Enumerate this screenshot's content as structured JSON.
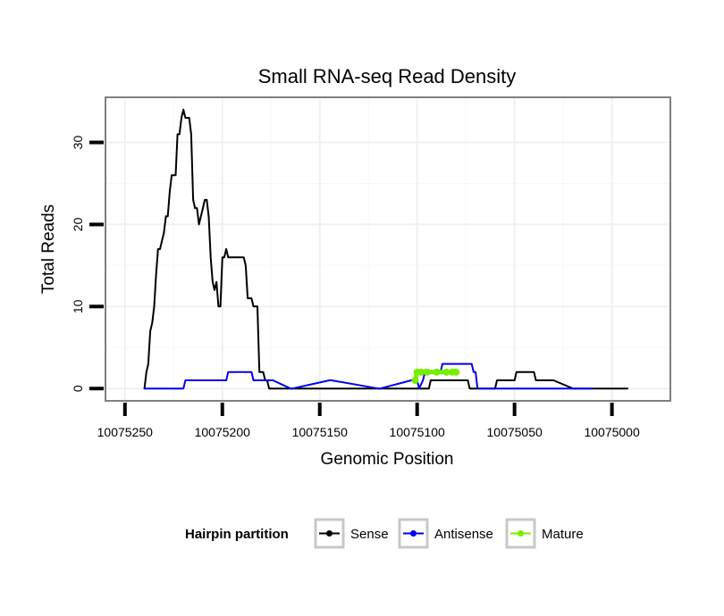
{
  "chart_data": {
    "type": "line",
    "title": "Small RNA-seq Read Density",
    "xlabel": "Genomic Position",
    "ylabel": "Total Reads",
    "xlim": [
      10075260,
      10074970
    ],
    "ylim": [
      -1.5,
      35.5
    ],
    "x_reversed": true,
    "x_ticks": [
      10075250,
      10075200,
      10075150,
      10075100,
      10075050,
      10075000
    ],
    "x_tick_labels": [
      "10075250",
      "10075200",
      "10075150",
      "10075100",
      "10075050",
      "10075000"
    ],
    "y_ticks": [
      0,
      10,
      20,
      30
    ],
    "y_tick_labels": [
      "0",
      "10",
      "20",
      "30"
    ],
    "grid": true,
    "legend": {
      "title": "Hairpin partition",
      "position": "bottom",
      "entries": [
        "Sense",
        "Antisense",
        "Mature"
      ]
    },
    "series": [
      {
        "name": "Sense",
        "color": "#000000",
        "x": [
          10075240,
          10075239,
          10075238,
          10075237,
          10075236,
          10075235,
          10075234,
          10075233,
          10075232,
          10075231,
          10075230,
          10075229,
          10075228,
          10075227,
          10075226,
          10075225,
          10075224,
          10075223,
          10075222,
          10075221,
          10075220,
          10075219,
          10075218,
          10075217,
          10075216,
          10075215,
          10075214,
          10075213,
          10075212,
          10075211,
          10075210,
          10075209,
          10075208,
          10075207,
          10075206,
          10075205,
          10075204,
          10075203,
          10075202,
          10075201,
          10075200,
          10075199,
          10075198,
          10075197,
          10075196,
          10075195,
          10075194,
          10075193,
          10075192,
          10075191,
          10075190,
          10075189,
          10075188,
          10075187,
          10075186,
          10075185,
          10075184,
          10075183,
          10075182,
          10075181,
          10075180,
          10075179,
          10075178,
          10075177,
          10075176,
          10075175,
          10075174,
          10075170,
          10075160,
          10075150,
          10075140,
          10075130,
          10075120,
          10075110,
          10075094,
          10075093,
          10075092,
          10075091,
          10075075,
          10075074,
          10075073,
          10075069,
          10075068,
          10075060,
          10075059,
          10075050,
          10075049,
          10075040,
          10075039,
          10075030,
          10075020,
          10075010,
          10075000,
          10074992
        ],
        "values": [
          0,
          2,
          3,
          7,
          8,
          10,
          14,
          17,
          17,
          18,
          19,
          21,
          21,
          24,
          26,
          26,
          26,
          31,
          31,
          33,
          34,
          33,
          33,
          33,
          31,
          23,
          22,
          22,
          20,
          21,
          22,
          23,
          23,
          21,
          16,
          13,
          12,
          13,
          10,
          10,
          16,
          16,
          17,
          16,
          16,
          16,
          16,
          16,
          16,
          16,
          16,
          16,
          15,
          11,
          11,
          11,
          10,
          10,
          10,
          2,
          2,
          2,
          1,
          1,
          0,
          0,
          0,
          0,
          0,
          0,
          0,
          0,
          0,
          0,
          0,
          1,
          1,
          1,
          1,
          1,
          0,
          0,
          0,
          0,
          1,
          1,
          2,
          2,
          1,
          1,
          0,
          0,
          0,
          0
        ]
      },
      {
        "name": "Antisense",
        "color": "#0000ee",
        "x": [
          10075240,
          10075220,
          10075219,
          10075207,
          10075206,
          10075198,
          10075197,
          10075185,
          10075184,
          10075175,
          10075174,
          10075165,
          10075164,
          10075145,
          10075144,
          10075120,
          10075119,
          10075103,
          10075102,
          10075100,
          10075099,
          10075097,
          10075096,
          10075088,
          10075087,
          10075072,
          10075071,
          10075070,
          10075069,
          10075060,
          10075040,
          10075020,
          10075010
        ],
        "values": [
          0,
          0,
          1,
          1,
          1,
          1,
          2,
          2,
          1,
          1,
          1,
          0,
          0,
          1,
          1,
          0,
          0,
          1,
          1,
          1,
          0,
          1,
          2,
          2,
          3,
          3,
          2,
          2,
          0,
          0,
          0,
          0,
          0
        ]
      },
      {
        "name": "Mature",
        "color": "#77ee00",
        "x": [
          10075101,
          10075100,
          10075098,
          10075095,
          10075090,
          10075085,
          10075082,
          10075080
        ],
        "values": [
          1,
          2,
          2,
          2,
          2,
          2,
          2,
          2
        ]
      }
    ]
  }
}
